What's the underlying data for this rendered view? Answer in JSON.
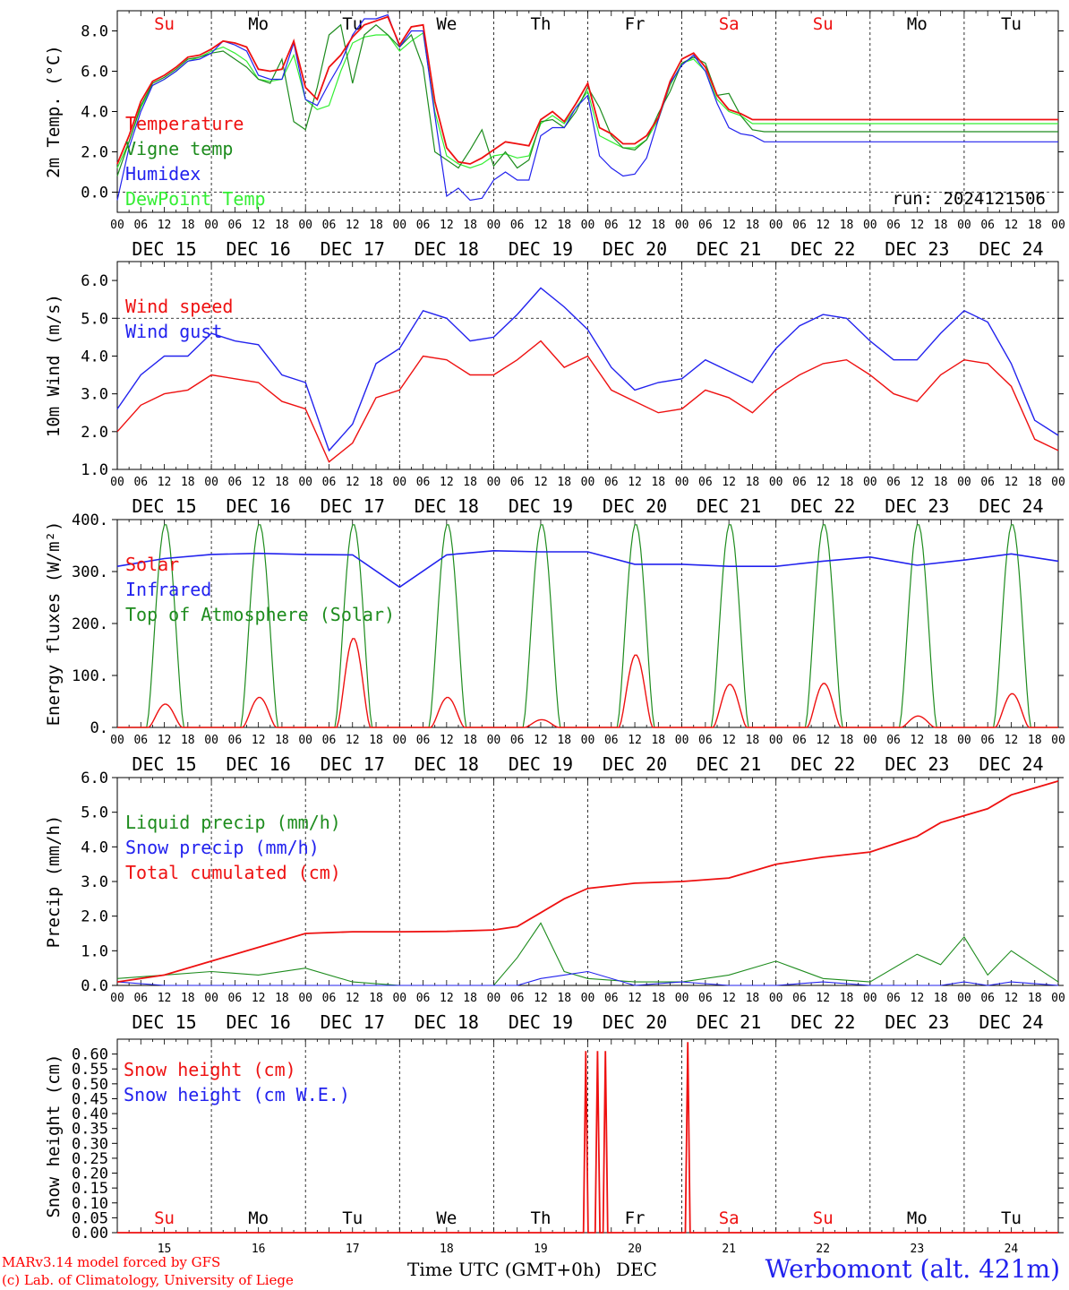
{
  "footer": {
    "credit_line1": "MARv3.14 model forced by GFS",
    "credit_line2": "(c) Lab. of Climatology, University of Liege",
    "xlabel": "Time UTC (GMT+0h)",
    "month": "DEC",
    "station": "Werbomont (alt. 421m)"
  },
  "colors": {
    "red": "#ee1111",
    "green": "#1e8c1e",
    "blue": "#2222ee",
    "lightgreen": "#33ee33",
    "black": "#000000"
  },
  "chart_data": [
    {
      "type": "line",
      "ylabel": "2m Temp. (°C)",
      "ylim": [
        -1.0,
        9.0
      ],
      "yticks": [
        0.0,
        2.0,
        4.0,
        6.0,
        8.0
      ],
      "ytick_labels": [
        "0.0",
        "2.0",
        "4.0",
        "6.0",
        "8.0"
      ],
      "hline": 0.0,
      "annotation": "run: 2024121506",
      "x_hours": [
        0,
        3,
        6,
        9,
        12,
        15,
        18,
        21,
        24,
        27,
        30,
        33,
        36,
        39,
        42,
        45,
        48,
        51,
        54,
        57,
        60,
        63,
        66,
        69,
        72,
        75,
        78,
        81,
        84,
        87,
        90,
        93,
        96,
        99,
        102,
        105,
        108,
        111,
        114,
        117,
        120,
        123,
        126,
        129,
        132,
        135,
        138,
        141,
        144,
        147,
        150,
        153,
        156,
        159,
        162,
        165,
        168,
        171,
        174,
        177,
        180,
        183,
        186,
        189,
        192,
        195,
        198,
        201,
        204,
        207,
        210,
        213,
        216,
        219,
        222,
        225,
        228,
        231,
        234,
        237,
        240
      ],
      "series": [
        {
          "name": "Temperature",
          "color": "#ee1111",
          "values": [
            1.4,
            2.8,
            4.5,
            5.5,
            5.8,
            6.2,
            6.7,
            6.8,
            7.1,
            7.5,
            7.4,
            7.2,
            6.1,
            6.0,
            6.1,
            7.5,
            5.2,
            4.6,
            6.2,
            6.8,
            7.7,
            8.3,
            8.5,
            8.7,
            7.3,
            8.2,
            8.3,
            4.5,
            2.2,
            1.5,
            1.4,
            1.7,
            2.1,
            2.5,
            2.4,
            2.3,
            3.6,
            4.0,
            3.5,
            4.4,
            5.4,
            3.2,
            2.9,
            2.4,
            2.4,
            2.8,
            3.7,
            5.5,
            6.6,
            6.9,
            6.2,
            4.8,
            4.1,
            3.9,
            3.6,
            3.6,
            3.6,
            3.6,
            3.6,
            3.6,
            3.6,
            3.6,
            3.6,
            3.6,
            3.6,
            3.6,
            3.6,
            3.6,
            3.6,
            3.6,
            3.6,
            3.6,
            3.6,
            3.6,
            3.6,
            3.6,
            3.6,
            3.6,
            3.6,
            3.6,
            3.6
          ]
        },
        {
          "name": "Vigne temp",
          "color": "#1e8c1e",
          "values": [
            0.8,
            2.5,
            4.3,
            5.4,
            5.7,
            6.1,
            6.6,
            6.7,
            6.9,
            7.0,
            6.6,
            6.2,
            5.6,
            5.4,
            6.6,
            3.5,
            3.1,
            5.2,
            7.8,
            8.3,
            5.4,
            7.8,
            8.3,
            7.8,
            7.2,
            7.8,
            6.2,
            2.0,
            1.6,
            1.2,
            2.1,
            3.1,
            1.3,
            2.0,
            1.2,
            1.6,
            3.5,
            3.6,
            3.2,
            4.0,
            5.2,
            4.2,
            2.8,
            2.2,
            2.1,
            2.6,
            3.9,
            5.0,
            6.4,
            6.7,
            6.4,
            4.8,
            4.9,
            3.8,
            3.1,
            3.0,
            3.0,
            3.0,
            3.0,
            3.0,
            3.0,
            3.0,
            3.0,
            3.0,
            3.0,
            3.0,
            3.0,
            3.0,
            3.0,
            3.0,
            3.0,
            3.0,
            3.0,
            3.0,
            3.0,
            3.0,
            3.0,
            3.0,
            3.0,
            3.0,
            3.0
          ]
        },
        {
          "name": "Humidex",
          "color": "#2222ee",
          "values": [
            -0.4,
            2.2,
            4.0,
            5.3,
            5.6,
            6.0,
            6.5,
            6.6,
            6.9,
            7.5,
            7.3,
            7.0,
            5.8,
            5.6,
            5.6,
            7.4,
            4.6,
            4.3,
            5.4,
            6.4,
            7.8,
            8.6,
            8.6,
            8.8,
            7.2,
            8.0,
            8.0,
            3.8,
            -0.2,
            0.2,
            -0.4,
            -0.3,
            0.6,
            1.0,
            0.6,
            0.6,
            2.8,
            3.2,
            3.2,
            4.2,
            4.8,
            1.8,
            1.2,
            0.8,
            0.9,
            1.7,
            3.6,
            5.4,
            6.3,
            6.8,
            6.0,
            4.4,
            3.2,
            2.9,
            2.8,
            2.5,
            2.5,
            2.5,
            2.5,
            2.5,
            2.5,
            2.5,
            2.5,
            2.5,
            2.5,
            2.5,
            2.5,
            2.5,
            2.5,
            2.5,
            2.5,
            2.5,
            2.5,
            2.5,
            2.5,
            2.5,
            2.5,
            2.5,
            2.5,
            2.5,
            2.5
          ]
        },
        {
          "name": "DewPoint Temp",
          "color": "#33ee33",
          "values": [
            1.2,
            2.5,
            4.2,
            5.3,
            5.6,
            6.0,
            6.5,
            6.7,
            7.0,
            7.2,
            6.9,
            6.5,
            5.6,
            5.5,
            5.6,
            6.8,
            4.6,
            4.1,
            4.3,
            6.0,
            7.4,
            7.7,
            7.8,
            7.8,
            7.0,
            7.5,
            7.9,
            4.0,
            1.8,
            1.4,
            1.2,
            1.4,
            1.8,
            1.9,
            1.7,
            1.8,
            3.4,
            3.8,
            3.4,
            4.2,
            5.0,
            2.8,
            2.5,
            2.2,
            2.2,
            2.6,
            3.6,
            5.3,
            6.4,
            6.6,
            6.0,
            4.6,
            4.0,
            3.8,
            3.4,
            3.4,
            3.4,
            3.4,
            3.4,
            3.4,
            3.4,
            3.4,
            3.4,
            3.4,
            3.4,
            3.4,
            3.4,
            3.4,
            3.4,
            3.4,
            3.4,
            3.4,
            3.4,
            3.4,
            3.4,
            3.4,
            3.4,
            3.4,
            3.4,
            3.4,
            3.4
          ]
        }
      ]
    },
    {
      "type": "line",
      "ylabel": "10m Wind (m/s)",
      "ylim": [
        1.0,
        6.5
      ],
      "yticks": [
        1.0,
        2.0,
        3.0,
        4.0,
        5.0,
        6.0
      ],
      "ytick_labels": [
        "1.0",
        "2.0",
        "3.0",
        "4.0",
        "5.0",
        "6.0"
      ],
      "hline": 5.0,
      "x_hours": [
        0,
        6,
        12,
        18,
        24,
        30,
        36,
        42,
        48,
        54,
        60,
        66,
        72,
        78,
        84,
        90,
        96,
        102,
        108,
        114,
        120,
        126,
        132,
        138,
        144,
        150,
        156,
        162,
        168,
        174,
        180,
        186,
        192,
        198,
        204,
        210,
        216,
        222,
        228,
        234,
        240
      ],
      "series": [
        {
          "name": "Wind speed",
          "color": "#ee1111",
          "values": [
            2.0,
            2.7,
            3.0,
            3.1,
            3.5,
            3.4,
            3.3,
            2.8,
            2.6,
            1.2,
            1.7,
            2.9,
            3.1,
            4.0,
            3.9,
            3.5,
            3.5,
            3.9,
            4.4,
            3.7,
            4.0,
            3.1,
            2.8,
            2.5,
            2.6,
            3.1,
            2.9,
            2.5,
            3.1,
            3.5,
            3.8,
            3.9,
            3.5,
            3.0,
            2.8,
            3.5,
            3.9,
            3.8,
            3.2,
            1.8,
            1.5
          ]
        },
        {
          "name": "Wind gust",
          "color": "#2222ee",
          "values": [
            2.6,
            3.5,
            4.0,
            4.0,
            4.6,
            4.4,
            4.3,
            3.5,
            3.3,
            1.5,
            2.2,
            3.8,
            4.2,
            5.2,
            5.0,
            4.4,
            4.5,
            5.1,
            5.8,
            5.3,
            4.7,
            3.7,
            3.1,
            3.3,
            3.4,
            3.9,
            3.6,
            3.3,
            4.2,
            4.8,
            5.1,
            5.0,
            4.4,
            3.9,
            3.9,
            4.6,
            5.2,
            4.9,
            3.8,
            2.3,
            1.9
          ]
        }
      ]
    },
    {
      "type": "line",
      "ylabel": "Energy fluxes (W/m²)",
      "ylim": [
        0,
        400
      ],
      "yticks": [
        0,
        100,
        200,
        300,
        400
      ],
      "ytick_labels": [
        "0.",
        "100.",
        "200.",
        "300.",
        "400."
      ],
      "x_hours": [
        0,
        12,
        24,
        36,
        48,
        60,
        72,
        84,
        96,
        108,
        120,
        132,
        144,
        156,
        168,
        180,
        192,
        204,
        216,
        228,
        240
      ],
      "series": [
        {
          "name": "Solar",
          "color": "#ee1111",
          "daily_peaks_wm2": [
            45,
            58,
            172,
            58,
            15,
            140,
            83,
            85,
            22,
            65
          ]
        },
        {
          "name": "Infrared",
          "color": "#2222ee",
          "values": [
            310,
            325,
            333,
            335,
            333,
            332,
            270,
            332,
            340,
            338,
            338,
            314,
            314,
            310,
            310,
            320,
            328,
            312,
            322,
            334,
            320
          ]
        },
        {
          "name": "Top of Atmosphere (Solar)",
          "color": "#1e8c1e",
          "daily_peak_wm2": 392
        }
      ]
    },
    {
      "type": "line",
      "ylabel": "Precip (mm/h)",
      "ylim": [
        0.0,
        6.0
      ],
      "yticks": [
        0.0,
        1.0,
        2.0,
        3.0,
        4.0,
        5.0,
        6.0
      ],
      "ytick_labels": [
        "0.0",
        "1.0",
        "2.0",
        "3.0",
        "4.0",
        "5.0",
        "6.0"
      ],
      "x_hours": [
        0,
        12,
        24,
        36,
        48,
        60,
        72,
        84,
        96,
        102,
        108,
        114,
        120,
        132,
        144,
        156,
        168,
        180,
        192,
        204,
        210,
        216,
        222,
        228,
        240
      ],
      "series": [
        {
          "name": "Liquid precip (mm/h)",
          "color": "#1e8c1e",
          "values": [
            0.2,
            0.3,
            0.4,
            0.3,
            0.5,
            0.1,
            0.0,
            0.0,
            0.0,
            0.8,
            1.8,
            0.4,
            0.2,
            0.1,
            0.1,
            0.3,
            0.7,
            0.2,
            0.1,
            0.9,
            0.6,
            1.4,
            0.3,
            1.0,
            0.1
          ]
        },
        {
          "name": "Snow precip (mm/h)",
          "color": "#2222ee",
          "values": [
            0.1,
            0.0,
            0.0,
            0.0,
            0.0,
            0.0,
            0.0,
            0.0,
            0.0,
            0.0,
            0.2,
            0.3,
            0.4,
            0.0,
            0.1,
            0.0,
            0.0,
            0.1,
            0.0,
            0.0,
            0.0,
            0.1,
            0.0,
            0.1,
            0.0
          ]
        },
        {
          "name": "Total cumulated (cm)",
          "color": "#ee1111",
          "values": [
            0.1,
            0.3,
            0.7,
            1.1,
            1.5,
            1.55,
            1.55,
            1.56,
            1.6,
            1.7,
            2.1,
            2.5,
            2.8,
            2.95,
            3.0,
            3.1,
            3.5,
            3.7,
            3.85,
            4.3,
            4.7,
            4.9,
            5.1,
            5.5,
            5.9
          ]
        }
      ]
    },
    {
      "type": "line",
      "ylabel": "Snow height (cm)",
      "ylim": [
        0.0,
        0.65
      ],
      "yticks": [
        0.0,
        0.05,
        0.1,
        0.15,
        0.2,
        0.25,
        0.3,
        0.35,
        0.4,
        0.45,
        0.5,
        0.55,
        0.6
      ],
      "ytick_labels": [
        "0.00",
        "0.05",
        "0.10",
        "0.15",
        "0.20",
        "0.25",
        "0.30",
        "0.35",
        "0.40",
        "0.45",
        "0.50",
        "0.55",
        "0.60"
      ],
      "series": [
        {
          "name": "Snow height (cm)",
          "color": "#ee1111",
          "spikes": [
            {
              "hour": 119.5,
              "value": 0.61
            },
            {
              "hour": 122.5,
              "value": 0.61
            },
            {
              "hour": 124.5,
              "value": 0.61
            },
            {
              "hour": 145.5,
              "value": 0.64
            }
          ]
        },
        {
          "name": "Snow height (cm W.E.)",
          "color": "#2222ee",
          "spikes": []
        }
      ]
    }
  ],
  "weekdays": [
    "Su",
    "Mo",
    "Tu",
    "We",
    "Th",
    "Fr",
    "Sa",
    "Su",
    "Mo",
    "Tu"
  ],
  "weekday_colors": [
    "#ee1111",
    "#000000",
    "#000000",
    "#000000",
    "#000000",
    "#000000",
    "#ee1111",
    "#ee1111",
    "#000000",
    "#000000"
  ],
  "date_labels": [
    "DEC 15",
    "DEC 16",
    "DEC 17",
    "DEC 18",
    "DEC 19",
    "DEC 20",
    "DEC 21",
    "DEC 22",
    "DEC 23",
    "DEC 24"
  ],
  "day_numbers": [
    "15",
    "16",
    "17",
    "18",
    "19",
    "20",
    "21",
    "22",
    "23",
    "24"
  ],
  "hour_ticks": [
    "00",
    "06",
    "12",
    "18"
  ]
}
